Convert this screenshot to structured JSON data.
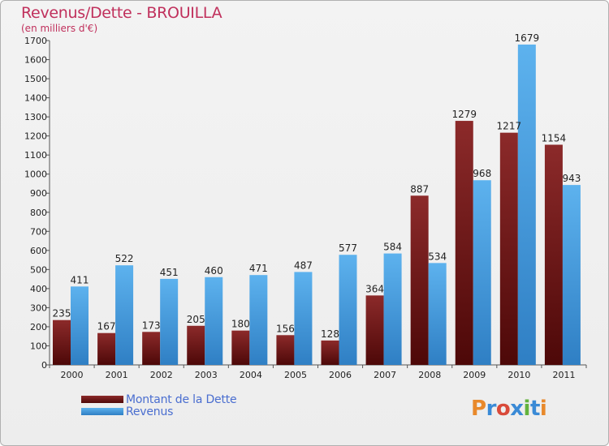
{
  "chart_data": {
    "type": "bar",
    "title": "Revenus/Dette - BROUILLA",
    "subtitle": "(en milliers d'€)",
    "categories": [
      "2000",
      "2001",
      "2002",
      "2003",
      "2004",
      "2005",
      "2006",
      "2007",
      "2008",
      "2009",
      "2010",
      "2011"
    ],
    "series": [
      {
        "name": "Montant de la Dette",
        "values": [
          235,
          167,
          173,
          205,
          180,
          156,
          128,
          364,
          887,
          1279,
          1217,
          1154
        ],
        "color": "#7a1a1a"
      },
      {
        "name": "Revenus",
        "values": [
          411,
          522,
          451,
          460,
          471,
          487,
          577,
          584,
          534,
          968,
          1679,
          943
        ],
        "color": "#4da6e8"
      }
    ],
    "ylim": [
      0,
      1700
    ],
    "yticks": [
      0,
      100,
      200,
      300,
      400,
      500,
      600,
      700,
      800,
      900,
      1000,
      1100,
      1200,
      1300,
      1400,
      1500,
      1600,
      1700
    ],
    "grid": false,
    "legend_position": "bottom-left"
  },
  "brand": {
    "letters": [
      "P",
      "r",
      "o",
      "x",
      "i",
      "t",
      "i"
    ],
    "colors": [
      "#e8892b",
      "#3a8ad6",
      "#d94a3a",
      "#3a8ad6",
      "#63b33d",
      "#3a8ad6",
      "#e8892b"
    ]
  }
}
